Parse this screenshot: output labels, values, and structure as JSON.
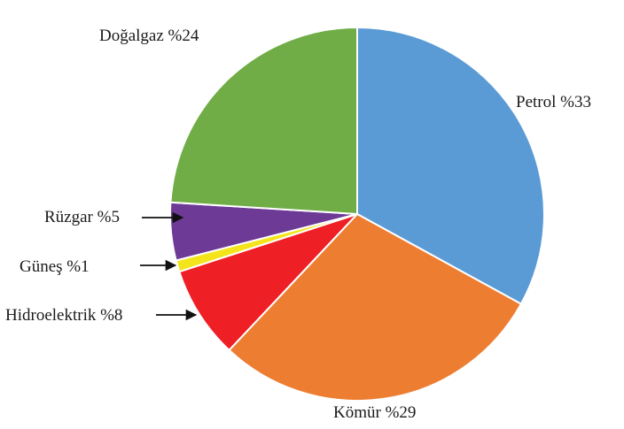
{
  "chart_data": {
    "type": "pie",
    "title": "",
    "slices": [
      {
        "label": "Petrol %33",
        "value": 33,
        "color": "#5b9bd5"
      },
      {
        "label": "Kömür %29",
        "value": 29,
        "color": "#ed7d31"
      },
      {
        "label": "Hidroelektrik %8",
        "value": 8,
        "color": "#ee1f25"
      },
      {
        "label": "Güneş %1",
        "value": 1,
        "color": "#f4e41b"
      },
      {
        "label": "Rüzgar %5",
        "value": 5,
        "color": "#6d3a96"
      },
      {
        "label": "Doğalgaz  %24",
        "value": 24,
        "color": "#70ad47"
      }
    ],
    "start_angle_deg": 0,
    "direction": "clockwise",
    "legend": "none"
  }
}
